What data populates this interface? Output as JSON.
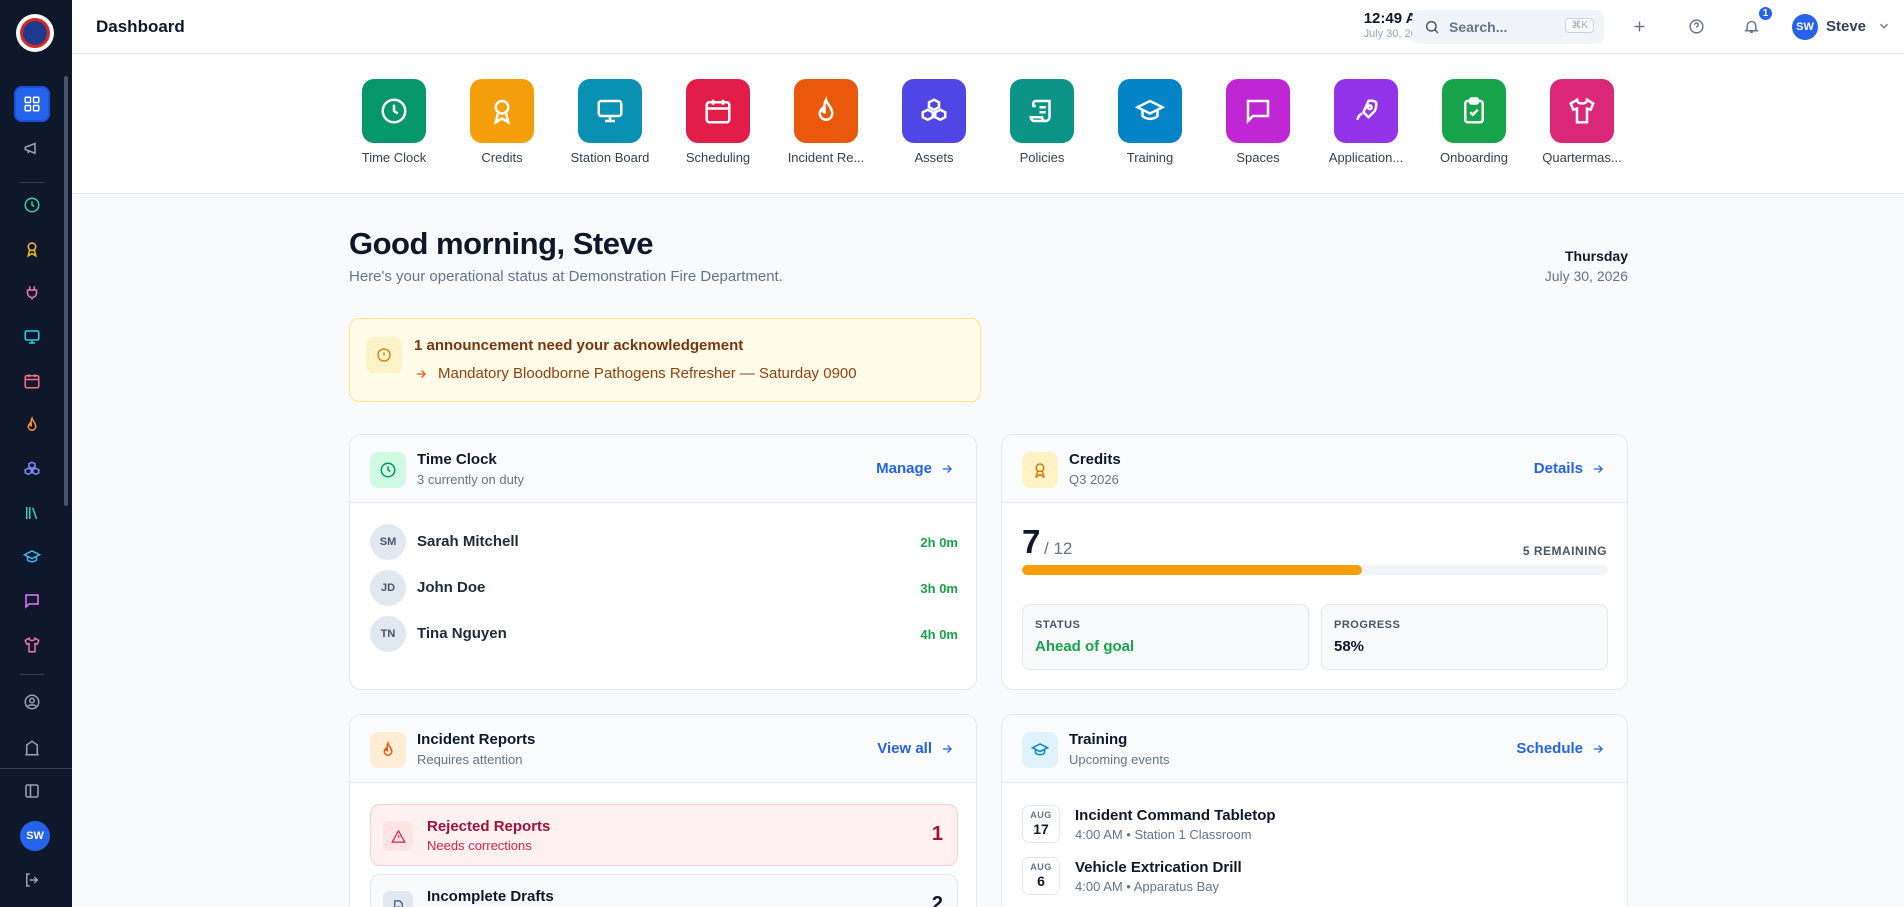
{
  "header": {
    "title": "Dashboard",
    "time": "12:49 AM",
    "date": "July 30, 2026",
    "search_placeholder": "Search...",
    "search_shortcut": "⌘K",
    "notification_count": "1",
    "user_initials": "SW",
    "user_name": "Steve"
  },
  "sidebar": {
    "logo": "department-badge-logo",
    "items": [
      "dashboard-icon",
      "megaphone-icon",
      "clock-icon",
      "award-icon",
      "plug-icon",
      "monitor-icon",
      "calendar-icon",
      "flame-icon",
      "boxes-icon",
      "library-icon",
      "graduation-cap-icon",
      "message-icon",
      "shirt-icon",
      "user-circle-icon",
      "building-icon"
    ],
    "collapse_icon": "sidebar-collapse-icon",
    "user_initials": "SW",
    "logout_icon": "logout-icon"
  },
  "apps": [
    {
      "label": "Time Clock",
      "color": "#059669",
      "icon": "clock-icon"
    },
    {
      "label": "Credits",
      "color": "#f59e0b",
      "icon": "award-icon"
    },
    {
      "label": "Station Board",
      "color": "#0891b2",
      "icon": "monitor-icon"
    },
    {
      "label": "Scheduling",
      "color": "#e11d48",
      "icon": "calendar-icon"
    },
    {
      "label": "Incident Re...",
      "color": "#ea580c",
      "icon": "flame-icon"
    },
    {
      "label": "Assets",
      "color": "#4f46e5",
      "icon": "boxes-icon"
    },
    {
      "label": "Policies",
      "color": "#0d9488",
      "icon": "scroll-icon"
    },
    {
      "label": "Training",
      "color": "#0284c7",
      "icon": "graduation-cap-icon"
    },
    {
      "label": "Spaces",
      "color": "#c026d3",
      "icon": "message-icon"
    },
    {
      "label": "Application...",
      "color": "#9333ea",
      "icon": "rocket-icon"
    },
    {
      "label": "Onboarding",
      "color": "#16a34a",
      "icon": "clipboard-check-icon"
    },
    {
      "label": "Quartermas...",
      "color": "#db2777",
      "icon": "shirt-icon"
    }
  ],
  "greeting": {
    "title": "Good morning, Steve",
    "subtitle": "Here's your operational status at Demonstration Fire Department.",
    "weekday": "Thursday",
    "date": "July 30, 2026"
  },
  "announcement": {
    "title": "1 announcement need your acknowledgement",
    "item": "Mandatory Bloodborne Pathogens Refresher — Saturday 0900"
  },
  "time_clock": {
    "title": "Time Clock",
    "subtitle": "3 currently on duty",
    "link": "Manage",
    "people": [
      {
        "initials": "SM",
        "name": "Sarah Mitchell",
        "duration": "2h 0m"
      },
      {
        "initials": "JD",
        "name": "John Doe",
        "duration": "3h 0m"
      },
      {
        "initials": "TN",
        "name": "Tina Nguyen",
        "duration": "4h 0m"
      }
    ]
  },
  "credits": {
    "title": "Credits",
    "subtitle": "Q3 2026",
    "link": "Details",
    "earned": "7",
    "total": "/ 12",
    "remaining": "5 REMAINING",
    "progress_fraction": 0.58,
    "status_label": "STATUS",
    "status_value": "Ahead of goal",
    "progress_label": "PROGRESS",
    "progress_value": "58%"
  },
  "incident_reports": {
    "title": "Incident Reports",
    "subtitle": "Requires attention",
    "link": "View all",
    "rows": [
      {
        "title": "Rejected Reports",
        "subtitle": "Needs corrections",
        "count": "1"
      },
      {
        "title": "Incomplete Drafts",
        "subtitle": "",
        "count": "2"
      }
    ]
  },
  "training": {
    "title": "Training",
    "subtitle": "Upcoming events",
    "link": "Schedule",
    "events": [
      {
        "month": "AUG",
        "day": "17",
        "title": "Incident Command Tabletop",
        "detail": "4:00 AM • Station 1 Classroom"
      },
      {
        "month": "AUG",
        "day": "6",
        "title": "Vehicle Extrication Drill",
        "detail": "4:00 AM • Apparatus Bay"
      }
    ]
  }
}
